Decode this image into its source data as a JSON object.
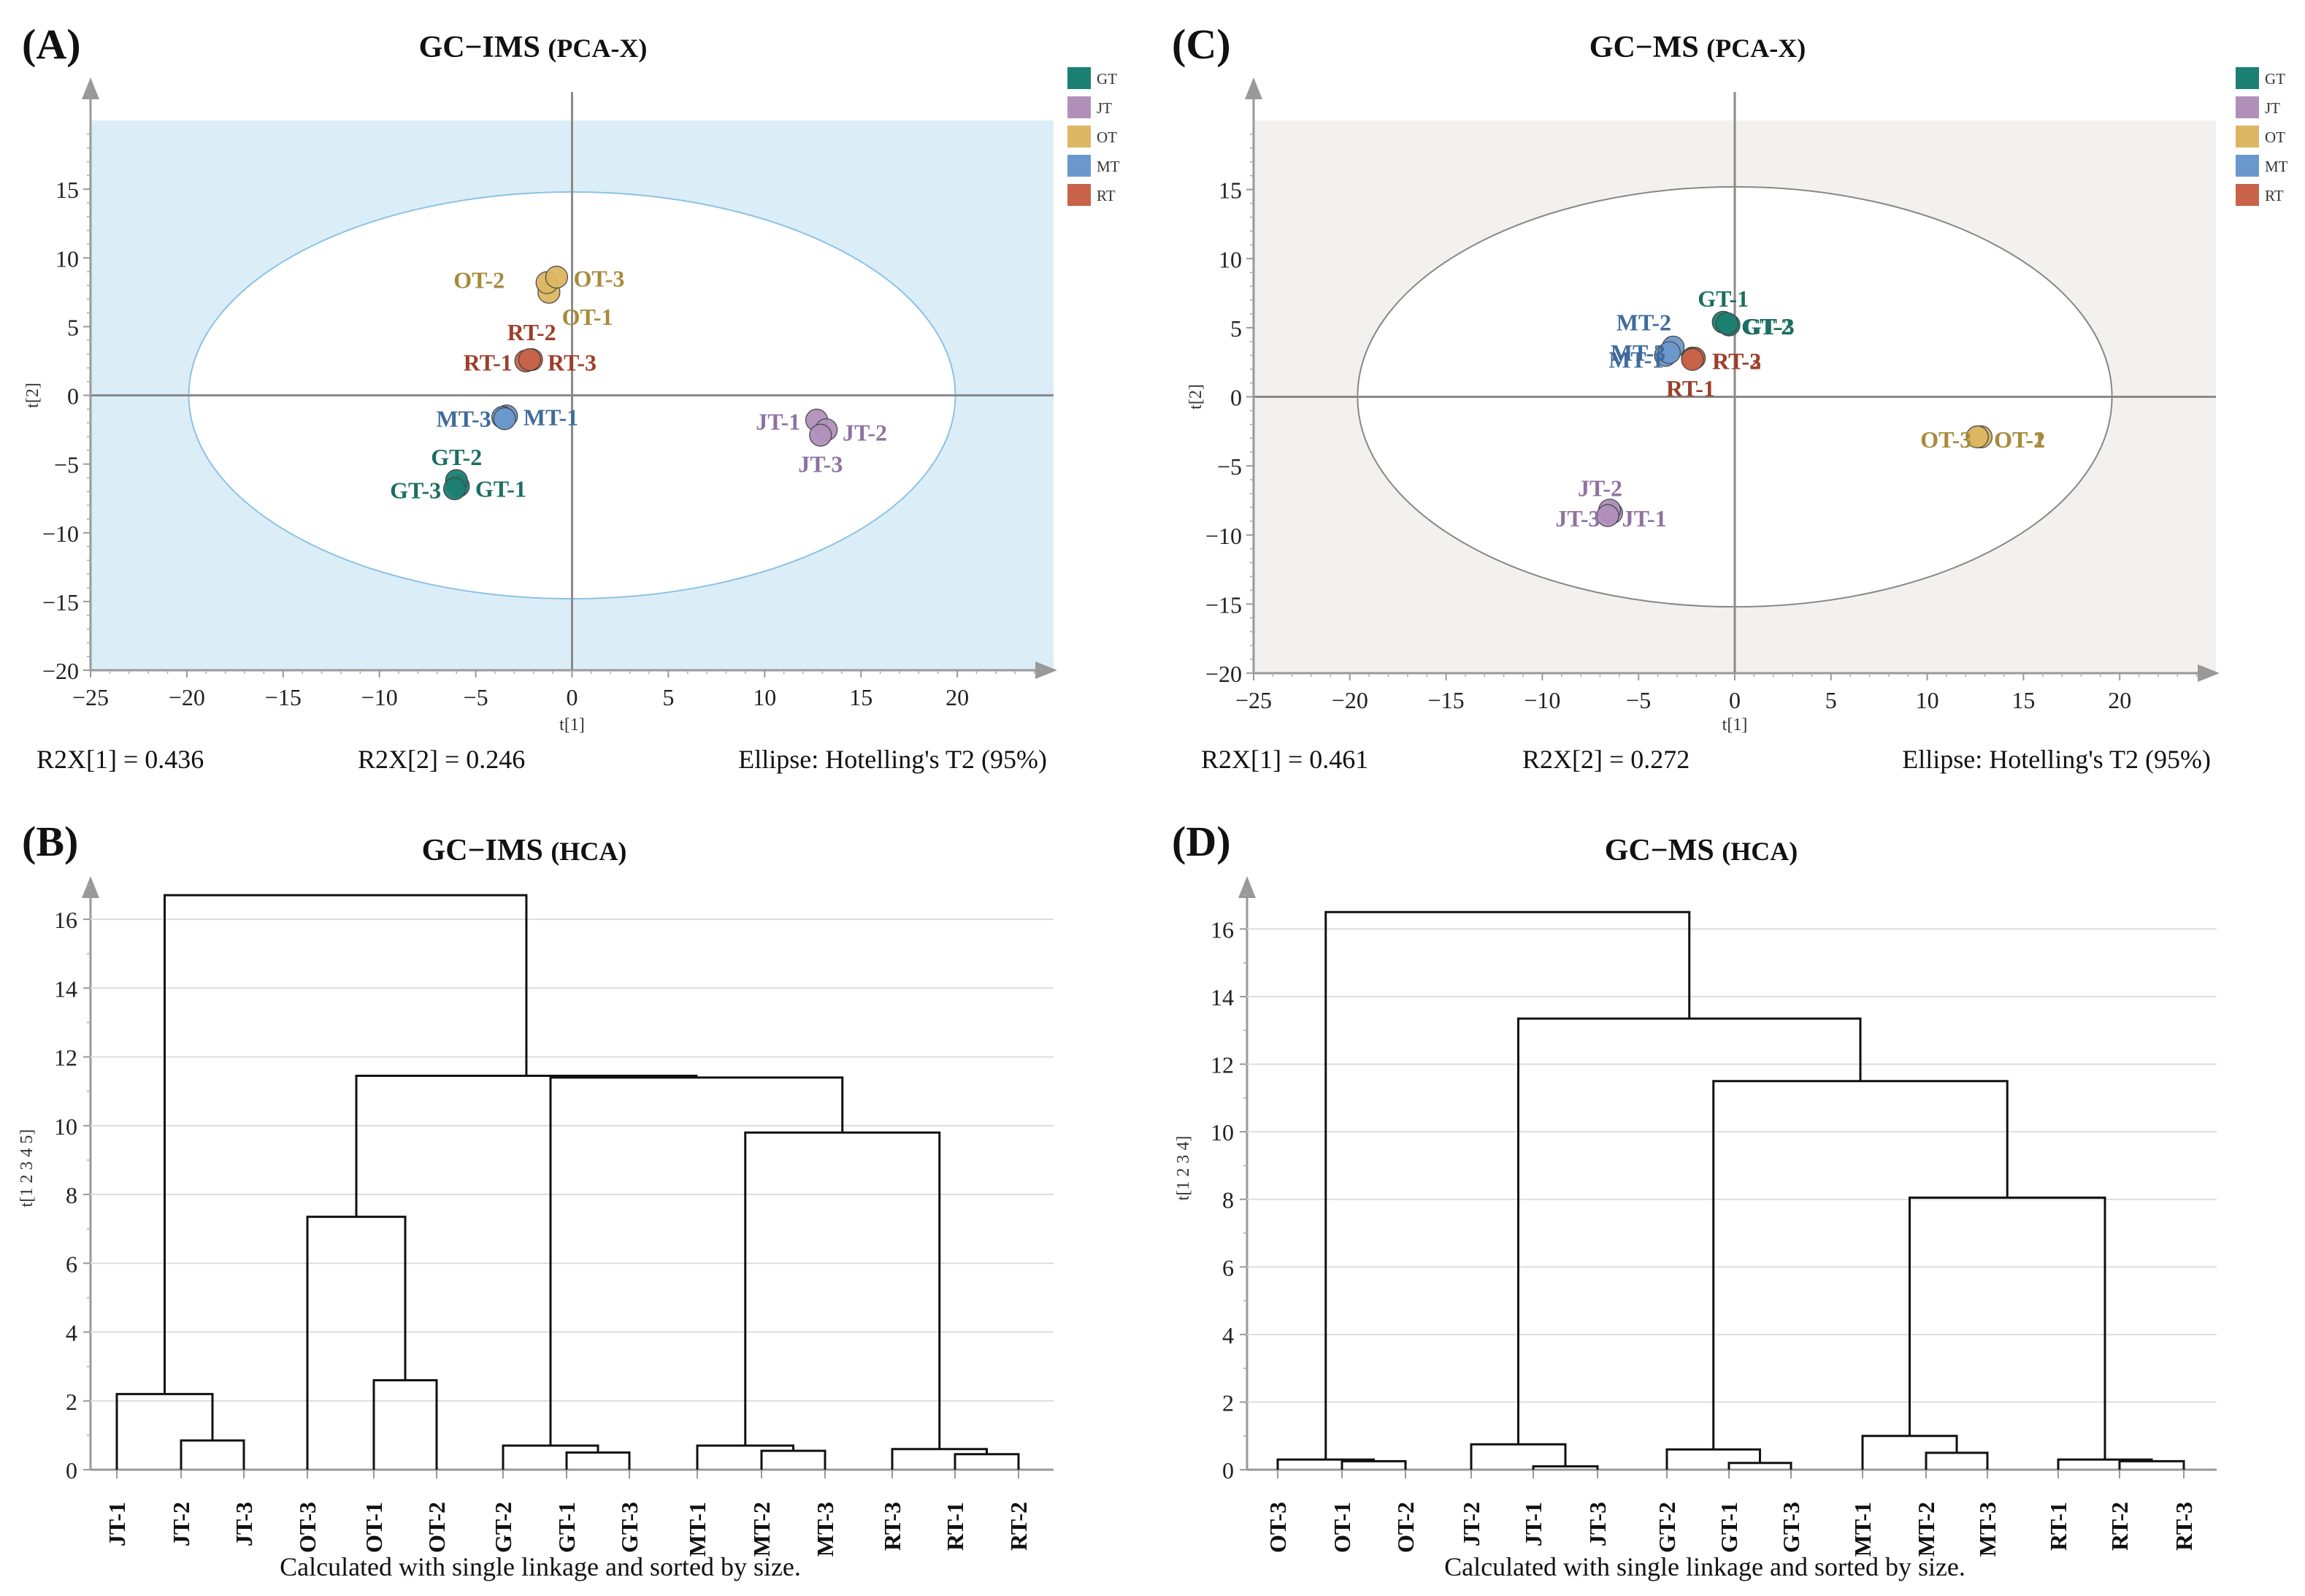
{
  "colors": {
    "GT": "#1b8072",
    "JT": "#b090ba",
    "OT": "#dcb662",
    "MT": "#6b98cc",
    "RT": "#c8634a",
    "label_GT": "#1b6e62",
    "label_JT": "#8f72a2",
    "label_OT": "#a88a3a",
    "label_MT": "#3f6b9c",
    "label_RT": "#9c3f2a",
    "bg_A": "#dbeef8",
    "bg_C": "#f2f1ef",
    "ellipse_A": "#8cc2e4",
    "ellipse_C": "#888888"
  },
  "legend": [
    "GT",
    "JT",
    "OT",
    "MT",
    "RT"
  ],
  "chart_data": [
    {
      "panel": "(A)",
      "type": "scatter",
      "title_bold": "GC−IMS",
      "title_rest": "(PCA-X)",
      "xlabel": "t[1]",
      "ylabel": "t[2]",
      "xlim": [
        -25,
        25
      ],
      "ylim": [
        -20,
        20
      ],
      "xticks": [
        -25,
        -20,
        -15,
        -10,
        -5,
        0,
        5,
        10,
        15,
        20
      ],
      "yticks": [
        -20,
        -15,
        -10,
        -5,
        0,
        5,
        10,
        15
      ],
      "ellipse": {
        "rx": 19.9,
        "ry": 14.8
      },
      "footer": [
        "R2X[1] = 0.436",
        "R2X[2] = 0.246",
        "Ellipse: Hotelling's T2 (95%)"
      ],
      "points": [
        {
          "label": "OT-1",
          "group": "OT",
          "x": -1.2,
          "y": 7.5
        },
        {
          "label": "OT-2",
          "group": "OT",
          "x": -1.3,
          "y": 8.2
        },
        {
          "label": "OT-3",
          "group": "OT",
          "x": -0.8,
          "y": 8.6
        },
        {
          "label": "RT-1",
          "group": "RT",
          "x": -2.4,
          "y": 2.5
        },
        {
          "label": "RT-2",
          "group": "RT",
          "x": -2.1,
          "y": 2.6
        },
        {
          "label": "RT-3",
          "group": "RT",
          "x": -2.2,
          "y": 2.6
        },
        {
          "label": "MT-1",
          "group": "MT",
          "x": -3.4,
          "y": -1.5
        },
        {
          "label": "MT-2",
          "group": "MT",
          "x": -3.6,
          "y": -1.6
        },
        {
          "label": "MT-3",
          "group": "MT",
          "x": -3.5,
          "y": -1.7
        },
        {
          "label": "GT-1",
          "group": "GT",
          "x": -5.9,
          "y": -6.6
        },
        {
          "label": "GT-2",
          "group": "GT",
          "x": -6.0,
          "y": -6.2
        },
        {
          "label": "GT-3",
          "group": "GT",
          "x": -6.1,
          "y": -6.8
        },
        {
          "label": "JT-1",
          "group": "JT",
          "x": 12.7,
          "y": -1.8
        },
        {
          "label": "JT-2",
          "group": "JT",
          "x": 13.2,
          "y": -2.5
        },
        {
          "label": "JT-3",
          "group": "JT",
          "x": 12.9,
          "y": -2.9
        }
      ],
      "labels": [
        {
          "text": "OT-2",
          "group": "OT",
          "x": -3.5,
          "y": 8.4,
          "anchor": "end"
        },
        {
          "text": "OT-3",
          "group": "OT",
          "x": 1.4,
          "y": 8.5,
          "anchor": "middle"
        },
        {
          "text": "OT-1",
          "group": "OT",
          "x": 0.8,
          "y": 5.7,
          "anchor": "middle"
        },
        {
          "text": "RT-2",
          "group": "RT",
          "x": -2.1,
          "y": 4.6,
          "anchor": "middle"
        },
        {
          "text": "RT-1",
          "group": "RT",
          "x": -3.1,
          "y": 2.4,
          "anchor": "end"
        },
        {
          "text": "RT-3",
          "group": "RT",
          "x": 0.0,
          "y": 2.4,
          "anchor": "middle"
        },
        {
          "text": "MT-3",
          "group": "MT",
          "x": -4.2,
          "y": -1.7,
          "anchor": "end"
        },
        {
          "text": "MT-1",
          "group": "MT",
          "x": -1.1,
          "y": -1.6,
          "anchor": "middle"
        },
        {
          "text": "GT-2",
          "group": "GT",
          "x": -6.0,
          "y": -4.5,
          "anchor": "middle"
        },
        {
          "text": "GT-3",
          "group": "GT",
          "x": -6.8,
          "y": -6.9,
          "anchor": "end"
        },
        {
          "text": "GT-1",
          "group": "GT",
          "x": -3.7,
          "y": -6.8,
          "anchor": "middle"
        },
        {
          "text": "JT-1",
          "group": "JT",
          "x": 10.7,
          "y": -1.9,
          "anchor": "middle"
        },
        {
          "text": "JT-2",
          "group": "JT",
          "x": 15.2,
          "y": -2.7,
          "anchor": "middle"
        },
        {
          "text": "JT-3",
          "group": "JT",
          "x": 12.9,
          "y": -5.0,
          "anchor": "middle"
        }
      ]
    },
    {
      "panel": "(C)",
      "type": "scatter",
      "title_bold": "GC−MS",
      "title_rest": "(PCA-X)",
      "xlabel": "t[1]",
      "ylabel": "t[2]",
      "xlim": [
        -25,
        25
      ],
      "ylim": [
        -20,
        20
      ],
      "xticks": [
        -25,
        -20,
        -15,
        -10,
        -5,
        0,
        5,
        10,
        15,
        20
      ],
      "yticks": [
        -20,
        -15,
        -10,
        -5,
        0,
        5,
        10,
        15
      ],
      "ellipse": {
        "rx": 19.6,
        "ry": 15.2
      },
      "footer": [
        "R2X[1] = 0.461",
        "R2X[2] = 0.272",
        "Ellipse: Hotelling's T2 (95%)"
      ],
      "points": [
        {
          "label": "GT-1",
          "group": "GT",
          "x": -0.6,
          "y": 5.4
        },
        {
          "label": "GT-2",
          "group": "GT",
          "x": -0.3,
          "y": 5.2
        },
        {
          "label": "GT-3",
          "group": "GT",
          "x": -0.4,
          "y": 5.3
        },
        {
          "label": "MT-1",
          "group": "MT",
          "x": -3.6,
          "y": 3.0
        },
        {
          "label": "MT-2",
          "group": "MT",
          "x": -3.2,
          "y": 3.6
        },
        {
          "label": "MT-3",
          "group": "MT",
          "x": -3.4,
          "y": 3.2
        },
        {
          "label": "RT-1",
          "group": "RT",
          "x": -2.2,
          "y": 2.8
        },
        {
          "label": "RT-2",
          "group": "RT",
          "x": -2.1,
          "y": 2.8
        },
        {
          "label": "RT-3",
          "group": "RT",
          "x": -2.2,
          "y": 2.7
        },
        {
          "label": "OT-1",
          "group": "OT",
          "x": 12.7,
          "y": -2.9
        },
        {
          "label": "OT-2",
          "group": "OT",
          "x": 12.8,
          "y": -2.9
        },
        {
          "label": "OT-3",
          "group": "OT",
          "x": 12.6,
          "y": -2.9
        },
        {
          "label": "JT-1",
          "group": "JT",
          "x": -6.4,
          "y": -8.4
        },
        {
          "label": "JT-2",
          "group": "JT",
          "x": -6.5,
          "y": -8.2
        },
        {
          "label": "JT-3",
          "group": "JT",
          "x": -6.6,
          "y": -8.6
        }
      ],
      "labels": [
        {
          "text": "GT-1",
          "group": "GT",
          "x": -0.6,
          "y": 7.1,
          "anchor": "middle"
        },
        {
          "text": "GT-2",
          "group": "GT",
          "x": 3.0,
          "y": 5.1,
          "anchor": "end"
        },
        {
          "text": "GT-3",
          "group": "GT",
          "x": 3.1,
          "y": 5.1,
          "anchor": "end"
        },
        {
          "text": "MT-2",
          "group": "MT",
          "x": -3.3,
          "y": 5.4,
          "anchor": "end"
        },
        {
          "text": "MT-3",
          "group": "MT",
          "x": -3.6,
          "y": 3.2,
          "anchor": "end"
        },
        {
          "text": "MT-1",
          "group": "MT",
          "x": -3.7,
          "y": 2.7,
          "anchor": "end"
        },
        {
          "text": "RT-2",
          "group": "RT",
          "x": 0.1,
          "y": 2.6,
          "anchor": "middle"
        },
        {
          "text": "RT-3",
          "group": "RT",
          "x": 0.1,
          "y": 2.6,
          "anchor": "middle"
        },
        {
          "text": "RT-1",
          "group": "RT",
          "x": -2.3,
          "y": 0.6,
          "anchor": "middle"
        },
        {
          "text": "OT-3",
          "group": "OT",
          "x": 12.3,
          "y": -3.1,
          "anchor": "end"
        },
        {
          "text": "OT-2",
          "group": "OT",
          "x": 14.8,
          "y": -3.1,
          "anchor": "middle"
        },
        {
          "text": "OT-1",
          "group": "OT",
          "x": 14.8,
          "y": -3.1,
          "anchor": "middle"
        },
        {
          "text": "JT-2",
          "group": "JT",
          "x": -7.0,
          "y": -6.6,
          "anchor": "middle"
        },
        {
          "text": "JT-3",
          "group": "JT",
          "x": -7.0,
          "y": -8.8,
          "anchor": "end"
        },
        {
          "text": "JT-1",
          "group": "JT",
          "x": -4.7,
          "y": -8.8,
          "anchor": "middle"
        }
      ]
    },
    {
      "panel": "(B)",
      "type": "dendrogram",
      "title_bold": "GC−IMS",
      "title_rest": "(HCA)",
      "ylabel": "t[1 2 3 4 5]",
      "ylim": [
        0,
        17
      ],
      "yticks": [
        0,
        2,
        4,
        6,
        8,
        10,
        12,
        14,
        16
      ],
      "footer": "Calculated with single linkage and sorted by size.",
      "leaves": [
        "JT-1",
        "JT-2",
        "JT-3",
        "OT-3",
        "OT-1",
        "OT-2",
        "GT-2",
        "GT-1",
        "GT-3",
        "MT-1",
        "MT-2",
        "MT-3",
        "RT-3",
        "RT-1",
        "RT-2"
      ],
      "links": [
        {
          "a": "JT-2",
          "b": "JT-3",
          "h": 0.85
        },
        {
          "a": "JT-1",
          "b": "n0",
          "h": 2.2
        },
        {
          "a": "OT-1",
          "b": "OT-2",
          "h": 2.6
        },
        {
          "a": "OT-3",
          "b": "n2",
          "h": 7.35
        },
        {
          "a": "GT-1",
          "b": "GT-3",
          "h": 0.5
        },
        {
          "a": "GT-2",
          "b": "n4",
          "h": 0.7
        },
        {
          "a": "MT-2",
          "b": "MT-3",
          "h": 0.55
        },
        {
          "a": "MT-1",
          "b": "n6",
          "h": 0.7
        },
        {
          "a": "RT-1",
          "b": "RT-2",
          "h": 0.45
        },
        {
          "a": "RT-3",
          "b": "n8",
          "h": 0.6
        },
        {
          "a": "n7",
          "b": "n9",
          "h": 9.8
        },
        {
          "a": "n5",
          "b": "n10",
          "h": 11.4
        },
        {
          "a": "n3",
          "b": "n11",
          "h": 11.45
        },
        {
          "a": "n1",
          "b": "n12",
          "h": 16.7
        }
      ]
    },
    {
      "panel": "(D)",
      "type": "dendrogram",
      "title_bold": "GC−MS",
      "title_rest": "(HCA)",
      "ylabel": "t[1 2 3 4]",
      "ylim": [
        0,
        17.5
      ],
      "yticks": [
        0,
        2,
        4,
        6,
        8,
        10,
        12,
        14,
        16
      ],
      "footer": "Calculated with single linkage and sorted by size.",
      "leaves": [
        "OT-3",
        "OT-1",
        "OT-2",
        "JT-2",
        "JT-1",
        "JT-3",
        "GT-2",
        "GT-1",
        "GT-3",
        "MT-1",
        "MT-2",
        "MT-3",
        "RT-1",
        "RT-2",
        "RT-3"
      ],
      "links": [
        {
          "a": "OT-1",
          "b": "OT-2",
          "h": 0.25
        },
        {
          "a": "OT-3",
          "b": "n0",
          "h": 0.3
        },
        {
          "a": "JT-1",
          "b": "JT-3",
          "h": 0.1
        },
        {
          "a": "JT-2",
          "b": "n2",
          "h": 0.75
        },
        {
          "a": "GT-1",
          "b": "GT-3",
          "h": 0.2
        },
        {
          "a": "GT-2",
          "b": "n4",
          "h": 0.6
        },
        {
          "a": "MT-2",
          "b": "MT-3",
          "h": 0.5
        },
        {
          "a": "MT-1",
          "b": "n6",
          "h": 1.0
        },
        {
          "a": "RT-2",
          "b": "RT-3",
          "h": 0.25
        },
        {
          "a": "RT-1",
          "b": "n8",
          "h": 0.3
        },
        {
          "a": "n7",
          "b": "n9",
          "h": 8.05
        },
        {
          "a": "n5",
          "b": "n10",
          "h": 11.5
        },
        {
          "a": "n3",
          "b": "n11",
          "h": 13.35
        },
        {
          "a": "n1",
          "b": "n12",
          "h": 16.5
        }
      ]
    }
  ]
}
